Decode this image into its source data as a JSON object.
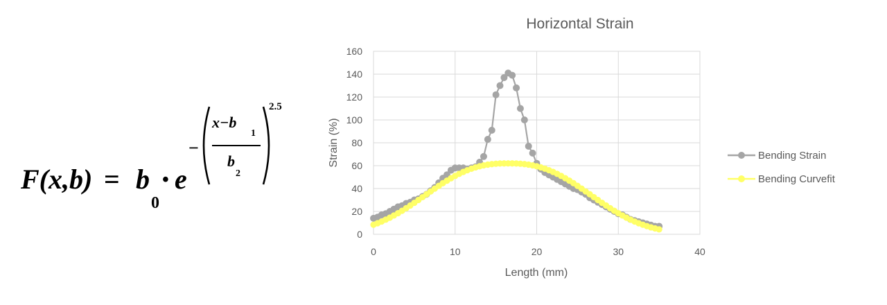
{
  "formula": {
    "lhs": "F(x,b)",
    "equals": "=",
    "coef": "b",
    "coef_sub": "0",
    "dot": "•",
    "base": "e",
    "minus": "−",
    "numerator": "x−b",
    "numerator_sub": "1",
    "denominator": "b",
    "denominator_sub": "2",
    "exponent": "2.5"
  },
  "chart_data": {
    "type": "line",
    "title": "Horizontal Strain",
    "xlabel": "Length (mm)",
    "ylabel": "Strain (%)",
    "xlim": [
      0,
      40
    ],
    "ylim": [
      0,
      160
    ],
    "xticks": [
      0,
      10,
      20,
      30,
      40
    ],
    "yticks": [
      0,
      20,
      40,
      60,
      80,
      100,
      120,
      140,
      160
    ],
    "grid": true,
    "legend_position": "right",
    "series": [
      {
        "name": "Bending Strain",
        "color": "#a5a5a5",
        "x": [
          0,
          0.5,
          1,
          1.5,
          2,
          2.5,
          3,
          3.5,
          4,
          4.5,
          5,
          5.5,
          6,
          6.5,
          7,
          7.5,
          8,
          8.5,
          9,
          9.5,
          10,
          10.5,
          11,
          11.5,
          12,
          12.5,
          13,
          13.5,
          14,
          14.5,
          15,
          15.5,
          16,
          16.5,
          17,
          17.5,
          18,
          18.5,
          19,
          19.5,
          20,
          20.5,
          21,
          21.5,
          22,
          22.5,
          23,
          23.5,
          24,
          24.5,
          25,
          25.5,
          26,
          26.5,
          27,
          27.5,
          28,
          28.5,
          29,
          29.5,
          30,
          30.5,
          31,
          31.5,
          32,
          32.5,
          33,
          33.5,
          34,
          34.5,
          35
        ],
        "y": [
          14,
          15,
          17,
          18,
          20,
          22,
          24,
          25,
          27,
          28,
          30,
          31,
          33,
          35,
          38,
          41,
          45,
          49,
          52,
          56,
          58,
          58,
          58,
          57,
          58,
          59,
          63,
          68,
          83,
          91,
          122,
          130,
          137,
          141,
          139,
          128,
          110,
          100,
          77,
          71,
          62,
          57,
          54,
          52,
          50,
          48,
          46,
          44,
          42,
          40,
          39,
          37,
          35,
          32,
          30,
          28,
          26,
          24,
          22,
          20,
          18,
          17,
          15,
          13,
          12,
          11,
          10,
          9,
          8,
          7,
          7
        ]
      },
      {
        "name": "Bending Curvefit",
        "color": "#ffff66",
        "model": {
          "b0": 62,
          "b1": 16.5,
          "b2": 12.5,
          "power": 2.5
        },
        "x": [
          0,
          0.5,
          1,
          1.5,
          2,
          2.5,
          3,
          3.5,
          4,
          4.5,
          5,
          5.5,
          6,
          6.5,
          7,
          7.5,
          8,
          8.5,
          9,
          9.5,
          10,
          10.5,
          11,
          11.5,
          12,
          12.5,
          13,
          13.5,
          14,
          14.5,
          15,
          15.5,
          16,
          16.5,
          17,
          17.5,
          18,
          18.5,
          19,
          19.5,
          20,
          20.5,
          21,
          21.5,
          22,
          22.5,
          23,
          23.5,
          24,
          24.5,
          25,
          25.5,
          26,
          26.5,
          27,
          27.5,
          28,
          28.5,
          29,
          29.5,
          30,
          30.5,
          31,
          31.5,
          32,
          32.5,
          33,
          33.5,
          34,
          34.5,
          35
        ]
      }
    ]
  }
}
